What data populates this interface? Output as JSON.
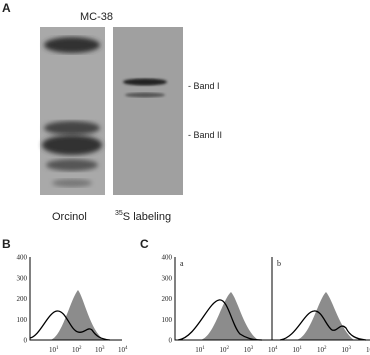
{
  "panel_a": {
    "label": "A",
    "title": "MC-38",
    "lanes": [
      "Orcinol",
      {
        "sup": "35",
        "text": "S labeling"
      }
    ],
    "bands": [
      "- Band I",
      "- Band II"
    ]
  },
  "panel_b": {
    "label": "B",
    "yticks": [
      "0",
      "100",
      "200",
      "300",
      "400"
    ],
    "xticks": [
      {
        "base": "10",
        "exp": "1"
      },
      {
        "base": "10",
        "exp": "2"
      },
      {
        "base": "10",
        "exp": "3"
      },
      {
        "base": "10",
        "exp": "4"
      }
    ]
  },
  "panel_c": {
    "label": "C",
    "yticks": [
      "0",
      "100",
      "200",
      "300",
      "400"
    ],
    "subpanels": [
      {
        "label": "a",
        "xticks": [
          {
            "base": "10",
            "exp": "1"
          },
          {
            "base": "10",
            "exp": "2"
          },
          {
            "base": "10",
            "exp": "3"
          },
          {
            "base": "10",
            "exp": "4"
          }
        ]
      },
      {
        "label": "b",
        "xticks": [
          {
            "base": "10",
            "exp": "1"
          },
          {
            "base": "10",
            "exp": "2"
          },
          {
            "base": "10",
            "exp": "3"
          },
          {
            "base": "10",
            "exp": "4"
          }
        ]
      }
    ]
  }
}
